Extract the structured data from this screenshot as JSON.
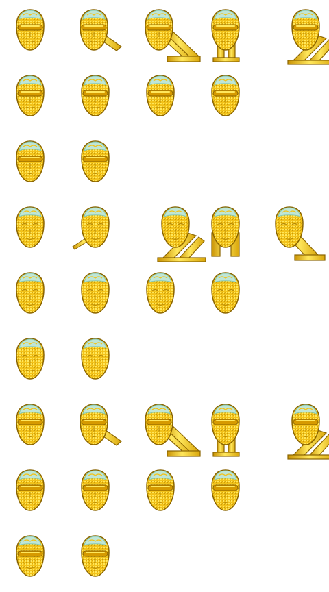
{
  "sheet": {
    "background": "#ffffff",
    "palette": {
      "gold": "#f2c21a",
      "gold_light": "#ffe75c",
      "gold_dark": "#b88a05",
      "outline": "#8a6400",
      "dome": "#bfe6d6",
      "dome_edge": "#86c7b0",
      "visor": "#d69a00"
    },
    "sprite_name": "golden-mesh-head",
    "groups": [
      {
        "name": "visor",
        "rows": [
          [
            "head",
            "head-beam",
            "head-diagonal-base",
            "head-pillars",
            "head-ramp-base"
          ],
          [
            "head",
            "head",
            "head",
            "head"
          ],
          [
            "head",
            "head"
          ]
        ]
      },
      {
        "name": "plain",
        "rows": [
          [
            "head",
            "head-stick",
            "head-ramp-base",
            "head-block-base",
            "head-tilted-base"
          ],
          [
            "head",
            "head",
            "head",
            "head"
          ],
          [
            "head",
            "head"
          ]
        ]
      },
      {
        "name": "visor",
        "rows": [
          [
            "head",
            "head-beam",
            "head-diagonal-base",
            "head-pillars",
            "head-ramp-base"
          ],
          [
            "head",
            "head",
            "head",
            "head"
          ],
          [
            "head",
            "head"
          ]
        ]
      }
    ]
  }
}
